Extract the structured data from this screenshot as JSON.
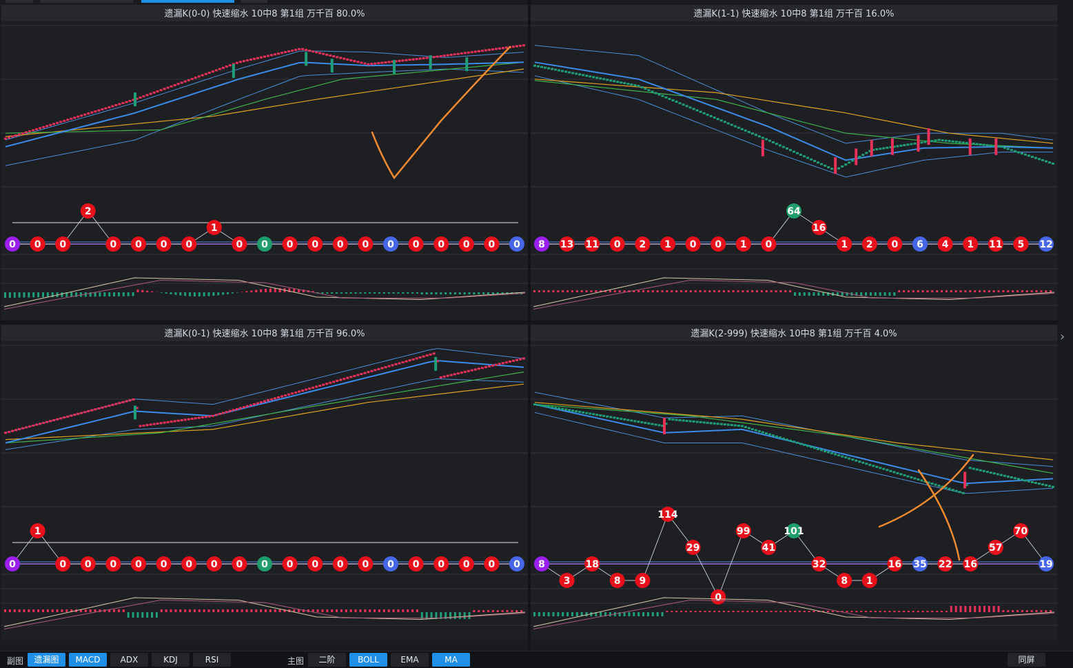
{
  "colors": {
    "background": "#1a1b1e",
    "panel_bg": "#1e1f23",
    "header_bg": "#26282d",
    "bull": "#e8315a",
    "bear": "#1f9e78",
    "ma_blue": "#3b8be8",
    "boll_light": "#4a8ed8",
    "ma_green": "#3fb24a",
    "ma_orange": "#e0a020",
    "accent": "#1f8fe8",
    "badge_red": "#e8111b",
    "badge_green": "#1f9e6b",
    "badge_blue": "#4667e8",
    "badge_purple": "#9b1ff0",
    "annotation": "#f08a30"
  },
  "panels": [
    {
      "title": "遗漏K(0-0)  快速缩水  10中8 第1组  万千百  80.0%",
      "trend": "up",
      "badges": [
        {
          "v": "0",
          "c": "purple",
          "row": 0
        },
        {
          "v": "0",
          "c": "red",
          "row": 0
        },
        {
          "v": "0",
          "c": "red",
          "row": 0
        },
        {
          "v": "2",
          "c": "red",
          "row": 2
        },
        {
          "v": "0",
          "c": "red",
          "row": 0
        },
        {
          "v": "0",
          "c": "red",
          "row": 0
        },
        {
          "v": "0",
          "c": "red",
          "row": 0
        },
        {
          "v": "0",
          "c": "red",
          "row": 0
        },
        {
          "v": "1",
          "c": "red",
          "row": 1
        },
        {
          "v": "0",
          "c": "red",
          "row": 0
        },
        {
          "v": "0",
          "c": "green",
          "row": 0
        },
        {
          "v": "0",
          "c": "red",
          "row": 0
        },
        {
          "v": "0",
          "c": "red",
          "row": 0
        },
        {
          "v": "0",
          "c": "red",
          "row": 0
        },
        {
          "v": "0",
          "c": "red",
          "row": 0
        },
        {
          "v": "0",
          "c": "blue",
          "row": 0
        },
        {
          "v": "0",
          "c": "red",
          "row": 0
        },
        {
          "v": "0",
          "c": "red",
          "row": 0
        },
        {
          "v": "0",
          "c": "red",
          "row": 0
        },
        {
          "v": "0",
          "c": "red",
          "row": 0
        },
        {
          "v": "0",
          "c": "blue",
          "row": 0
        }
      ]
    },
    {
      "title": "遗漏K(1-1)  快速缩水  10中8 第1组  万千百  16.0%",
      "trend": "down",
      "badges": [
        {
          "v": "8",
          "c": "purple",
          "row": 0
        },
        {
          "v": "13",
          "c": "red",
          "row": 0
        },
        {
          "v": "11",
          "c": "red",
          "row": 0
        },
        {
          "v": "0",
          "c": "red",
          "row": 0
        },
        {
          "v": "2",
          "c": "red",
          "row": 0
        },
        {
          "v": "1",
          "c": "red",
          "row": 0
        },
        {
          "v": "0",
          "c": "red",
          "row": 0
        },
        {
          "v": "0",
          "c": "red",
          "row": 0
        },
        {
          "v": "1",
          "c": "red",
          "row": 0
        },
        {
          "v": "0",
          "c": "red",
          "row": 0
        },
        {
          "v": "64",
          "c": "green",
          "row": 2
        },
        {
          "v": "16",
          "c": "red",
          "row": 1
        },
        {
          "v": "1",
          "c": "red",
          "row": 0
        },
        {
          "v": "2",
          "c": "red",
          "row": 0
        },
        {
          "v": "0",
          "c": "red",
          "row": 0
        },
        {
          "v": "6",
          "c": "blue",
          "row": 0
        },
        {
          "v": "4",
          "c": "red",
          "row": 0
        },
        {
          "v": "1",
          "c": "red",
          "row": 0
        },
        {
          "v": "11",
          "c": "red",
          "row": 0
        },
        {
          "v": "5",
          "c": "red",
          "row": 0
        },
        {
          "v": "12",
          "c": "blue",
          "row": 0
        }
      ]
    },
    {
      "title": "遗漏K(0-1)  快速缩水  10中8 第1组  万千百  96.0%",
      "trend": "up2",
      "badges": [
        {
          "v": "0",
          "c": "purple",
          "row": 0
        },
        {
          "v": "1",
          "c": "red",
          "row": 2
        },
        {
          "v": "0",
          "c": "red",
          "row": 0
        },
        {
          "v": "0",
          "c": "red",
          "row": 0
        },
        {
          "v": "0",
          "c": "red",
          "row": 0
        },
        {
          "v": "0",
          "c": "red",
          "row": 0
        },
        {
          "v": "0",
          "c": "red",
          "row": 0
        },
        {
          "v": "0",
          "c": "red",
          "row": 0
        },
        {
          "v": "0",
          "c": "red",
          "row": 0
        },
        {
          "v": "0",
          "c": "red",
          "row": 0
        },
        {
          "v": "0",
          "c": "green",
          "row": 0
        },
        {
          "v": "0",
          "c": "red",
          "row": 0
        },
        {
          "v": "0",
          "c": "red",
          "row": 0
        },
        {
          "v": "0",
          "c": "red",
          "row": 0
        },
        {
          "v": "0",
          "c": "red",
          "row": 0
        },
        {
          "v": "0",
          "c": "blue",
          "row": 0
        },
        {
          "v": "0",
          "c": "red",
          "row": 0
        },
        {
          "v": "0",
          "c": "red",
          "row": 0
        },
        {
          "v": "0",
          "c": "red",
          "row": 0
        },
        {
          "v": "0",
          "c": "red",
          "row": 0
        },
        {
          "v": "0",
          "c": "blue",
          "row": 0
        }
      ]
    },
    {
      "title": "遗漏K(2-999)  快速缩水  10中8 第1组  万千百  4.0%",
      "trend": "down2",
      "badges": [
        {
          "v": "8",
          "c": "purple",
          "row": 0
        },
        {
          "v": "3",
          "c": "red",
          "row": -1
        },
        {
          "v": "18",
          "c": "red",
          "row": 0
        },
        {
          "v": "8",
          "c": "red",
          "row": -1
        },
        {
          "v": "9",
          "c": "red",
          "row": -1
        },
        {
          "v": "114",
          "c": "red",
          "row": 3
        },
        {
          "v": "29",
          "c": "red",
          "row": 1
        },
        {
          "v": "0",
          "c": "red",
          "row": -2
        },
        {
          "v": "99",
          "c": "red",
          "row": 2
        },
        {
          "v": "41",
          "c": "red",
          "row": 1
        },
        {
          "v": "101",
          "c": "green",
          "row": 2
        },
        {
          "v": "32",
          "c": "red",
          "row": 0
        },
        {
          "v": "8",
          "c": "red",
          "row": -1
        },
        {
          "v": "1",
          "c": "red",
          "row": -1
        },
        {
          "v": "16",
          "c": "red",
          "row": 0
        },
        {
          "v": "35",
          "c": "blue",
          "row": 0
        },
        {
          "v": "22",
          "c": "red",
          "row": 0
        },
        {
          "v": "16",
          "c": "red",
          "row": 0
        },
        {
          "v": "57",
          "c": "red",
          "row": 1
        },
        {
          "v": "70",
          "c": "red",
          "row": 2
        },
        {
          "v": "19",
          "c": "blue",
          "row": 0
        }
      ]
    }
  ],
  "bottom_bar": {
    "sub_label": "副图",
    "sub_buttons": [
      {
        "label": "遗漏图",
        "on": true
      },
      {
        "label": "MACD",
        "on": true
      },
      {
        "label": "ADX",
        "on": false
      },
      {
        "label": "KDJ",
        "on": false
      },
      {
        "label": "RSI",
        "on": false
      }
    ],
    "main_label": "主图",
    "main_buttons": [
      {
        "label": "二阶",
        "on": false
      },
      {
        "label": "BOLL",
        "on": true
      },
      {
        "label": "EMA",
        "on": false
      },
      {
        "label": "MA",
        "on": true
      }
    ],
    "sync_label": "同屏"
  },
  "icons": {
    "next": "chevron-right-icon"
  }
}
